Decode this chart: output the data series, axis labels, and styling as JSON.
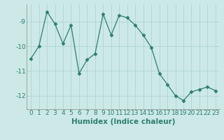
{
  "x": [
    0,
    1,
    2,
    3,
    4,
    5,
    6,
    7,
    8,
    9,
    10,
    11,
    12,
    13,
    14,
    15,
    16,
    17,
    18,
    19,
    20,
    21,
    22,
    23
  ],
  "y": [
    -10.5,
    -10.0,
    -8.6,
    -9.1,
    -9.9,
    -9.15,
    -11.1,
    -10.55,
    -10.3,
    -8.7,
    -9.55,
    -8.75,
    -8.85,
    -9.15,
    -9.55,
    -10.05,
    -11.1,
    -11.55,
    -12.0,
    -12.2,
    -11.85,
    -11.75,
    -11.65,
    -11.8
  ],
  "line_color": "#2e7d6e",
  "marker": "D",
  "marker_size": 2.5,
  "bg_color": "#cce9e7",
  "grid_color": "#afd4d1",
  "xlabel": "Humidex (Indice chaleur)",
  "ylim": [
    -12.55,
    -8.3
  ],
  "xlim": [
    -0.5,
    23.5
  ],
  "yticks": [
    -12,
    -11,
    -10,
    -9
  ],
  "xticks": [
    0,
    1,
    2,
    3,
    4,
    5,
    6,
    7,
    8,
    9,
    10,
    11,
    12,
    13,
    14,
    15,
    16,
    17,
    18,
    19,
    20,
    21,
    22,
    23
  ],
  "xlabel_fontsize": 7.5,
  "tick_fontsize": 6.5
}
